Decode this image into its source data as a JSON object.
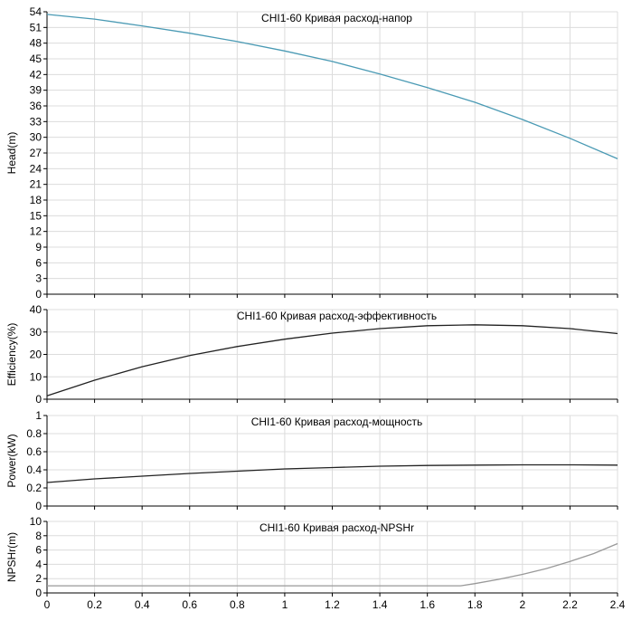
{
  "chart_data": [
    {
      "type": "line",
      "title": "CHI1-60 Кривая расход-напор",
      "xlabel": "",
      "ylabel": "Head(m)",
      "xlim": [
        0,
        2.4
      ],
      "ylim": [
        0,
        54
      ],
      "yticks": [
        "0",
        "3",
        "6",
        "9",
        "12",
        "15",
        "18",
        "21",
        "24",
        "27",
        "30",
        "33",
        "36",
        "39",
        "42",
        "45",
        "48",
        "51",
        "54"
      ],
      "grid": true,
      "color": "#4a9ab4",
      "series": [
        {
          "x": [
            0,
            0.2,
            0.4,
            0.6,
            0.8,
            1.0,
            1.2,
            1.4,
            1.6,
            1.8,
            2.0,
            2.2,
            2.4
          ],
          "y": [
            53.5,
            52.6,
            51.3,
            49.9,
            48.3,
            46.5,
            44.5,
            42.1,
            39.5,
            36.7,
            33.4,
            29.8,
            25.9
          ]
        }
      ]
    },
    {
      "type": "line",
      "title": "CHI1-60 Кривая расход-эффективность",
      "xlabel": "",
      "ylabel": "Efficiency(%)",
      "xlim": [
        0,
        2.4
      ],
      "ylim": [
        0,
        40
      ],
      "yticks": [
        "0",
        "10",
        "20",
        "30",
        "40"
      ],
      "grid": true,
      "color": "#222222",
      "series": [
        {
          "x": [
            0,
            0.2,
            0.4,
            0.6,
            0.8,
            1.0,
            1.2,
            1.4,
            1.6,
            1.8,
            2.0,
            2.2,
            2.4
          ],
          "y": [
            1.5,
            8.5,
            14.5,
            19.5,
            23.5,
            26.8,
            29.5,
            31.5,
            32.8,
            33.2,
            32.8,
            31.5,
            29.3
          ]
        }
      ]
    },
    {
      "type": "line",
      "title": "CHI1-60 Кривая расход-мощность",
      "xlabel": "",
      "ylabel": "Power(kW)",
      "xlim": [
        0,
        2.4
      ],
      "ylim": [
        0,
        1
      ],
      "yticks": [
        "0",
        "0.2",
        "0.4",
        "0.6",
        "0.8",
        "1"
      ],
      "grid": true,
      "color": "#222222",
      "series": [
        {
          "x": [
            0,
            0.2,
            0.4,
            0.6,
            0.8,
            1.0,
            1.2,
            1.4,
            1.6,
            1.8,
            2.0,
            2.2,
            2.4
          ],
          "y": [
            0.26,
            0.3,
            0.33,
            0.36,
            0.385,
            0.41,
            0.425,
            0.44,
            0.448,
            0.452,
            0.455,
            0.455,
            0.452
          ]
        }
      ]
    },
    {
      "type": "line",
      "title": "CHI1-60 Кривая расход-NPSHr",
      "xlabel": "",
      "ylabel": "NPSHr(m)",
      "xlim": [
        0,
        2.4
      ],
      "ylim": [
        0,
        10
      ],
      "yticks": [
        "0",
        "2",
        "4",
        "6",
        "8",
        "10"
      ],
      "grid": true,
      "color": "#999999",
      "series": [
        {
          "x": [
            0,
            0.2,
            0.4,
            0.6,
            0.8,
            1.0,
            1.2,
            1.4,
            1.6,
            1.74,
            1.8,
            1.9,
            2.0,
            2.1,
            2.2,
            2.3,
            2.4
          ],
          "y": [
            1.0,
            1.0,
            1.0,
            1.0,
            1.0,
            1.0,
            1.0,
            1.0,
            1.0,
            1.0,
            1.3,
            1.9,
            2.6,
            3.4,
            4.4,
            5.5,
            6.9
          ]
        }
      ]
    }
  ],
  "x_axis": {
    "ticks": [
      0,
      0.2,
      0.4,
      0.6,
      0.8,
      1,
      1.2,
      1.4,
      1.6,
      1.8,
      2,
      2.2,
      2.4
    ],
    "labels": [
      "0",
      "0.2",
      "0.4",
      "0.6",
      "0.8",
      "1",
      "1.2",
      "1.4",
      "1.6",
      "1.8",
      "2",
      "2.2",
      "2.4"
    ]
  },
  "colors": {
    "grid": "#dcdcdc",
    "axis": "#000000",
    "text": "#000000"
  }
}
